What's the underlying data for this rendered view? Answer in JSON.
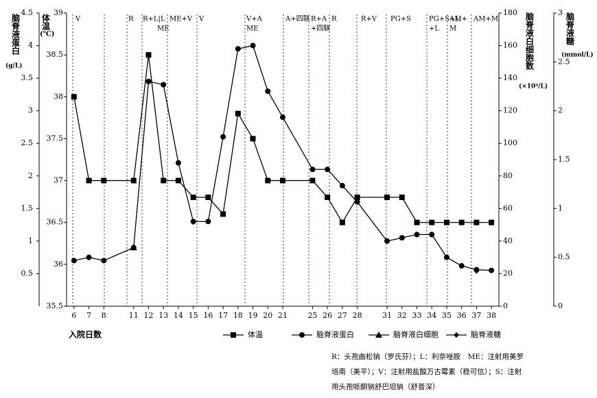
{
  "chart_data": {
    "type": "line",
    "x_label": "入院日数",
    "categories": [
      6,
      7,
      8,
      11,
      12,
      13,
      14,
      15,
      16,
      17,
      18,
      19,
      20,
      21,
      25,
      26,
      27,
      28,
      31,
      32,
      33,
      34,
      35,
      36,
      37,
      38
    ],
    "axes": {
      "protein": {
        "title": "脑脊液蛋白",
        "unit": "(g/L)",
        "lim": [
          0,
          4.5
        ],
        "ticks": [
          0.5,
          1,
          1.5,
          2,
          2.5,
          3,
          3.5,
          4,
          4.5
        ]
      },
      "temp": {
        "title": "体温",
        "unit": "(℃)",
        "lim": [
          35.5,
          39
        ],
        "ticks": [
          35.5,
          36,
          36.5,
          37,
          37.5,
          38,
          38.5,
          39
        ]
      },
      "wbc": {
        "title": "脑脊液白细胞数",
        "unit": "(×10⁶/L)",
        "lim": [
          0,
          180
        ],
        "ticks": [
          0,
          20,
          40,
          60,
          80,
          100,
          120,
          140,
          160,
          180
        ]
      },
      "glucose": {
        "title": "脑脊液糖",
        "unit": "(mmol/L)",
        "lim": [
          0,
          3
        ],
        "ticks": [
          0,
          0.5,
          1,
          1.5,
          2,
          2.5,
          3
        ]
      }
    },
    "series": [
      {
        "name": "体温",
        "axis": "temp",
        "marker": "square",
        "color": "#000000",
        "values": [
          38.0,
          37.0,
          37.0,
          37.0,
          38.5,
          37.0,
          37.0,
          36.8,
          36.8,
          36.6,
          37.8,
          37.5,
          37.0,
          37.0,
          37.0,
          36.8,
          36.5,
          36.8,
          36.8,
          36.8,
          36.5,
          36.5,
          36.5,
          36.5,
          36.5,
          36.5
        ]
      },
      {
        "name": "脑脊液蛋白",
        "axis": "protein",
        "marker": "circle",
        "color": "#000000",
        "values": [
          0.7,
          0.75,
          0.7,
          0.9,
          3.45,
          3.4,
          2.2,
          1.3,
          1.3,
          2.6,
          3.95,
          4.0,
          3.3,
          2.9,
          2.1,
          2.1,
          1.85,
          1.6,
          1.0,
          1.05,
          1.1,
          1.1,
          0.75,
          0.62,
          0.56,
          0.55
        ]
      },
      {
        "name": "脑脊液白细胞",
        "axis": "wbc",
        "marker": "triangle",
        "color": "#000000",
        "values": [
          null,
          null,
          null,
          36,
          null,
          null,
          null,
          null,
          null,
          null,
          null,
          null,
          null,
          null,
          null,
          null,
          null,
          null,
          null,
          null,
          null,
          null,
          null,
          null,
          null,
          null
        ]
      },
      {
        "name": "脑脊液糖",
        "axis": "glucose",
        "marker": "diamond",
        "color": "#000000",
        "values": [
          null,
          null,
          null,
          null,
          null,
          null,
          null,
          0.86,
          null,
          null,
          null,
          null,
          null,
          null,
          null,
          null,
          null,
          null,
          null,
          null,
          null,
          null,
          0.5,
          null,
          0.36,
          null
        ]
      }
    ],
    "annotations": [
      "V",
      "R",
      "R+L|L",
      "ME",
      "ME+V",
      "V",
      "V+A",
      "ME",
      "A+四联",
      "R+A",
      "+四联",
      "R",
      "R+V",
      "PG+S",
      "PG+S+L",
      "+L",
      "AM+",
      "M",
      "AM+M"
    ],
    "notes": [
      "R：头孢曲松钠（罗氏芬）；L：利奈唑胺　ME：注射用美罗",
      "培南（美平）；V：注射用盐酸万古霉素（稳可信）；S：注射",
      "用头孢哌酮钠舒巴坦钠（舒普深）"
    ]
  }
}
